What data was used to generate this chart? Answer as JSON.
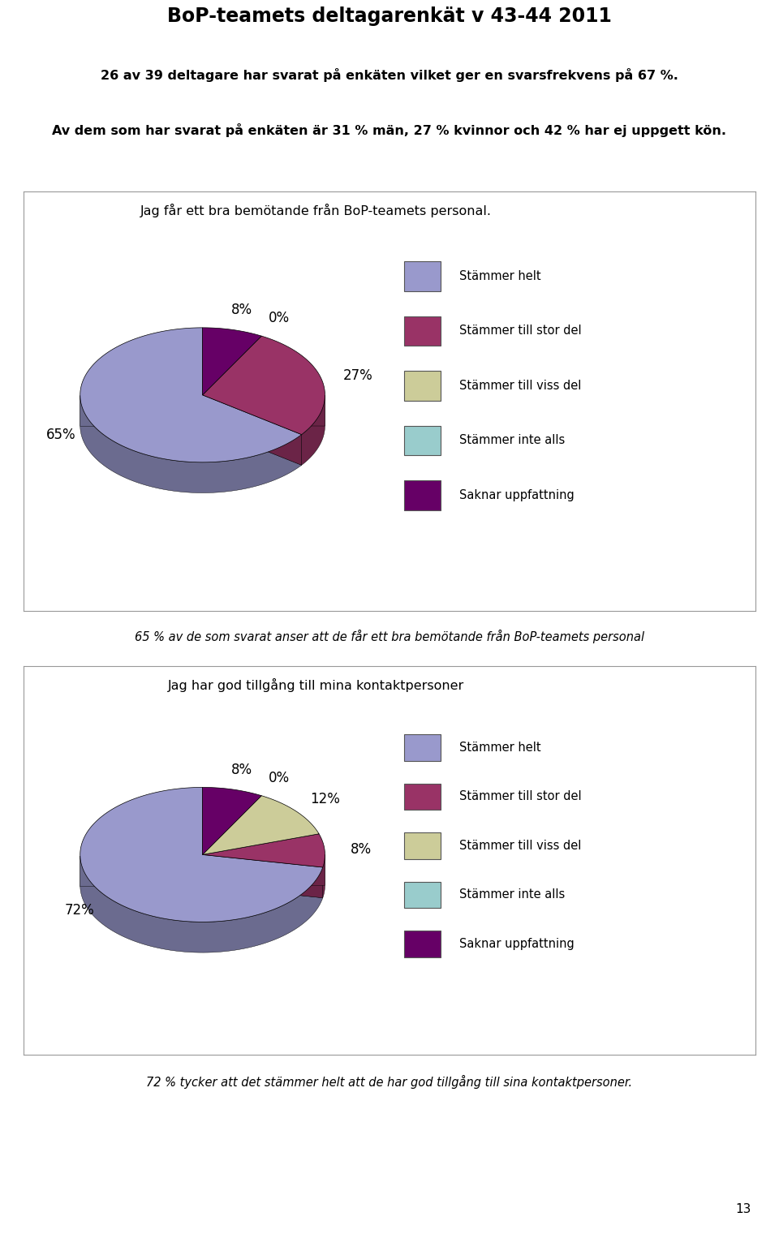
{
  "title": "BoP-teamets deltagarenkät v 43-44 2011",
  "subtitle1": "26 av 39 deltagare har svarat på enkäten vilket ger en svarsfrekvens på 67 %.",
  "subtitle2": "Av dem som har svarat på enkäten är 31 % män, 27 % kvinnor och 42 % har ej uppgett kön.",
  "chart1_title": "Jag får ett bra bemötande från BoP-teamets personal.",
  "chart1_values": [
    65,
    27,
    0,
    0,
    8
  ],
  "chart1_pct_labels": [
    "65%",
    "27%",
    "",
    "0%",
    "8%"
  ],
  "chart1_footer": "65 % av de som svarat anser att de får ett bra bemötande från BoP-teamets personal",
  "chart2_title": "Jag har god tillgång till mina kontaktpersoner",
  "chart2_values": [
    72,
    8,
    12,
    0,
    8
  ],
  "chart2_pct_labels": [
    "72%",
    "8%",
    "12%",
    "0%",
    "8%"
  ],
  "chart2_footer": "72 % tycker att det stämmer helt att de har god tillgång till sina kontaktpersoner.",
  "legend_labels": [
    "Stämmer helt",
    "Stämmer till stor del",
    "Stämmer till viss del",
    "Stämmer inte alls",
    "Saknar uppfattning"
  ],
  "colors": [
    "#9999cc",
    "#993366",
    "#cccc99",
    "#99cccc",
    "#660066"
  ],
  "dark_colors": [
    "#6666aa",
    "#662244",
    "#999966",
    "#669999",
    "#330033"
  ],
  "page_number": "13",
  "bg_color": "#ffffff"
}
